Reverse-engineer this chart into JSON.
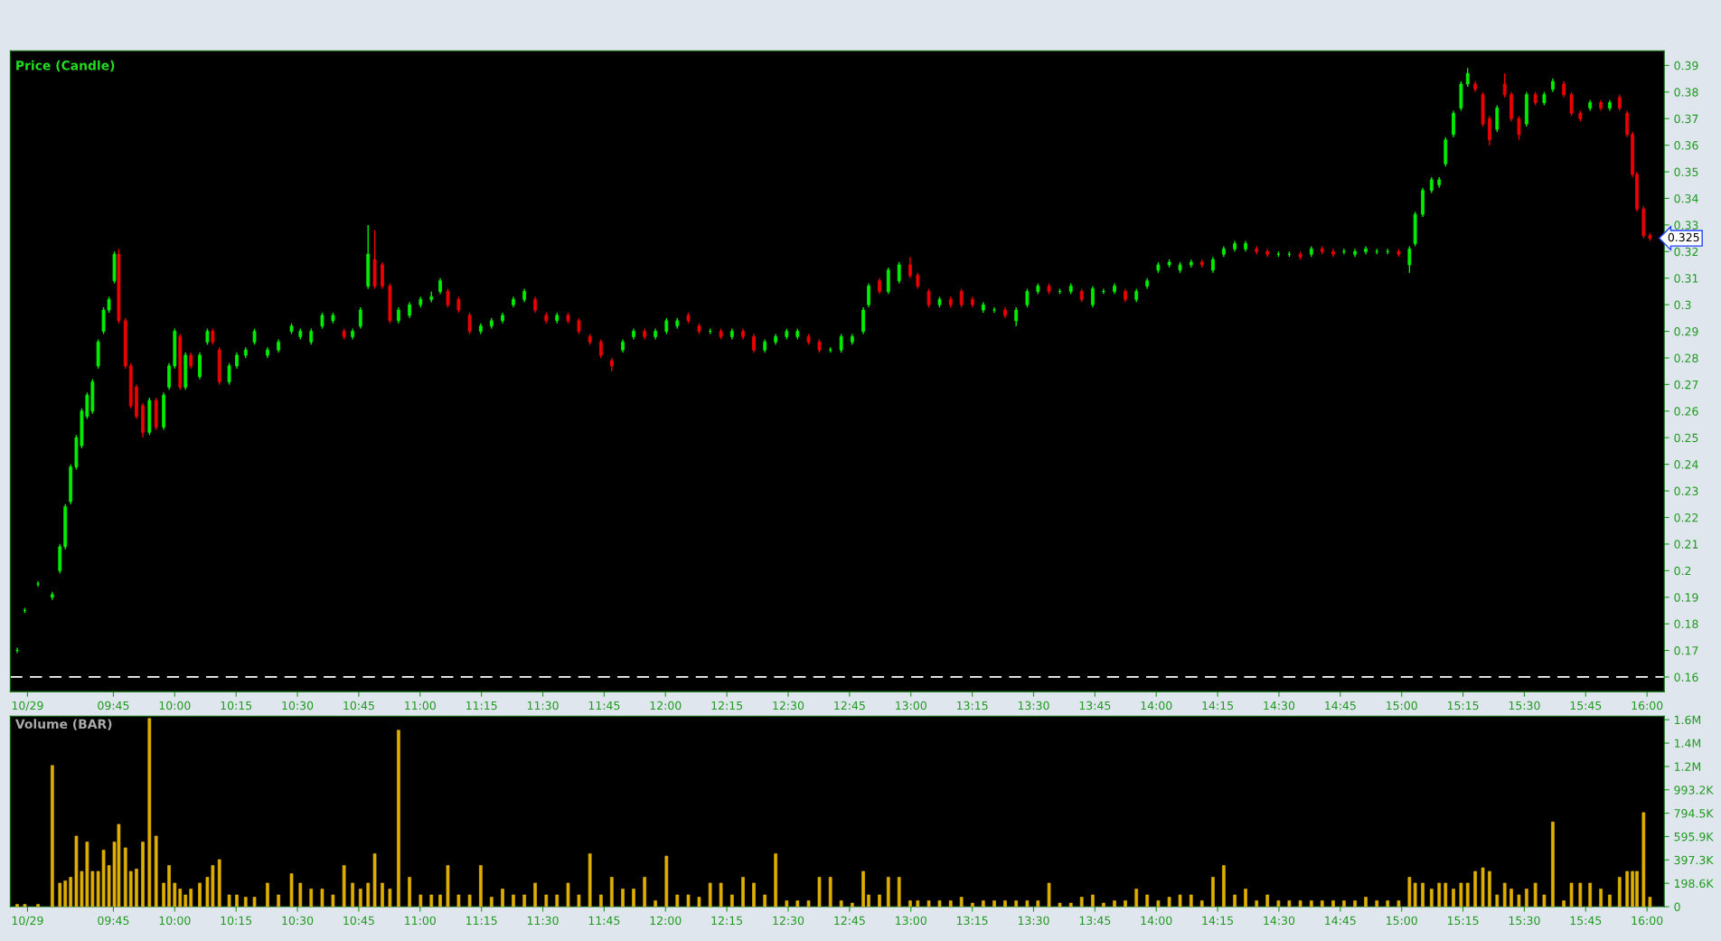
{
  "chart_data": [
    {
      "type": "candlestick",
      "title": "Price (Candle)",
      "colors": [
        "#00ee00",
        "#00ee00",
        "#00ee00",
        "#00ee00",
        "#00ee00",
        "#00ee00",
        "#00ee00",
        "#00ee00",
        "#00ee00",
        "#00ee00",
        "#00ee00",
        "#00ee00",
        "#00ee00",
        "#00ee00",
        "#00ee00",
        "#ee0000",
        "#ee0000",
        "#ee0000",
        "#ee0000",
        "#ee0000",
        "#00ee00",
        "#ee0000",
        "#00ee00",
        "#00ee00",
        "#00ee00",
        "#ee0000",
        "#00ee00",
        "#ee0000",
        "#00ee00",
        "#00ee00",
        "#ee0000",
        "#ee0000",
        "#00ee00",
        "#00ee00",
        "#00ee00",
        "#00ee00",
        "#00ee00",
        "#00ee00",
        "#00ee00",
        "#00ee00",
        "#00ee00",
        "#00ee00",
        "#00ee00",
        "#ee0000",
        "#00ee00",
        "#00ee00",
        "#00ee00",
        "#ee0000",
        "#ee0000",
        "#ee0000",
        "#00ee00",
        "#00ee00",
        "#00ee00",
        "#00ee00",
        "#00ee00",
        "#ee0000",
        "#ee0000",
        "#ee0000",
        "#00ee00",
        "#00ee00",
        "#00ee00",
        "#00ee00",
        "#00ee00",
        "#ee0000",
        "#ee0000",
        "#00ee00",
        "#ee0000",
        "#ee0000",
        "#ee0000",
        "#ee0000",
        "#ee0000",
        "#00ee00",
        "#00ee00",
        "#ee0000",
        "#00ee00",
        "#00ee00",
        "#00ee00",
        "#ee0000",
        "#ee0000",
        "#00ee00",
        "#ee0000",
        "#00ee00",
        "#ee0000",
        "#ee0000",
        "#00ee00",
        "#00ee00",
        "#00ee00",
        "#00ee00",
        "#ee0000",
        "#ee0000",
        "#00ee00",
        "#00ee00",
        "#00ee00",
        "#00ee00",
        "#00ee00",
        "#ee0000",
        "#00ee00",
        "#00ee00",
        "#ee0000",
        "#ee0000",
        "#ee0000",
        "#00ee00",
        "#ee0000",
        "#ee0000",
        "#ee0000",
        "#00ee00",
        "#00ee00",
        "#ee0000",
        "#00ee00",
        "#00ee00",
        "#00ee00",
        "#ee0000",
        "#00ee00",
        "#00ee00",
        "#ee0000",
        "#00ee00",
        "#00ee00",
        "#00ee00",
        "#ee0000",
        "#00ee00",
        "#00ee00",
        "#00ee00",
        "#00ee00",
        "#00ee00",
        "#00ee00",
        "#ee0000",
        "#00ee00",
        "#00ee00",
        "#00ee00",
        "#00ee00",
        "#ee0000",
        "#ee0000",
        "#00ee00",
        "#00ee00",
        "#ee0000",
        "#00ee00",
        "#ee0000",
        "#ee0000",
        "#00ee00",
        "#00ee00",
        "#00ee00",
        "#00ee00",
        "#00ee00",
        "#ee0000",
        "#00ee00",
        "#00ee00",
        "#00ee00",
        "#00ee00",
        "#00ee00",
        "#00ee00",
        "#00ee00",
        "#00ee00",
        "#00ee00",
        "#ee0000",
        "#ee0000",
        "#ee0000",
        "#00ee00",
        "#ee0000",
        "#ee0000",
        "#ee0000",
        "#00ee00",
        "#ee0000",
        "#00ee00",
        "#00ee00",
        "#ee0000",
        "#ee0000",
        "#ee0000",
        "#00ee00",
        "#ee0000",
        "#00ee00",
        "#ee0000",
        "#ee0000",
        "#ee0000",
        "#ee0000",
        "#ee0000",
        "#ee0000"
      ],
      "x": [
        9.358,
        9.389,
        9.443,
        9.501,
        9.532,
        9.554,
        9.576,
        9.599,
        9.621,
        9.643,
        9.665,
        9.688,
        9.71,
        9.732,
        9.754,
        9.772,
        9.799,
        9.821,
        9.844,
        9.87,
        9.897,
        9.924,
        9.955,
        9.977,
        10.0,
        10.022,
        10.044,
        10.066,
        10.102,
        10.133,
        10.155,
        10.182,
        10.222,
        10.253,
        10.289,
        10.325,
        10.378,
        10.423,
        10.476,
        10.512,
        10.556,
        10.601,
        10.645,
        10.69,
        10.725,
        10.757,
        10.788,
        10.815,
        10.846,
        10.877,
        10.912,
        10.957,
        11.002,
        11.046,
        11.082,
        11.113,
        11.157,
        11.202,
        11.247,
        11.291,
        11.336,
        11.38,
        11.425,
        11.469,
        11.514,
        11.558,
        11.603,
        11.647,
        11.692,
        11.737,
        11.781,
        11.826,
        11.87,
        11.915,
        11.959,
        12.004,
        12.048,
        12.093,
        12.137,
        12.182,
        12.226,
        12.271,
        12.316,
        12.36,
        12.405,
        12.449,
        12.494,
        12.538,
        12.583,
        12.627,
        12.672,
        12.716,
        12.761,
        12.806,
        12.828,
        12.872,
        12.908,
        12.952,
        12.997,
        13.028,
        13.073,
        13.117,
        13.162,
        13.206,
        13.251,
        13.295,
        13.34,
        13.384,
        13.429,
        13.474,
        13.518,
        13.563,
        13.607,
        13.652,
        13.696,
        13.741,
        13.785,
        13.83,
        13.874,
        13.919,
        13.963,
        14.008,
        14.053,
        14.097,
        14.142,
        14.186,
        14.231,
        14.275,
        14.32,
        14.364,
        14.409,
        14.453,
        14.498,
        14.542,
        14.587,
        14.632,
        14.676,
        14.721,
        14.765,
        14.81,
        14.854,
        14.899,
        14.943,
        14.988,
        15.032,
        15.055,
        15.086,
        15.122,
        15.153,
        15.179,
        15.211,
        15.242,
        15.269,
        15.3,
        15.331,
        15.358,
        15.389,
        15.42,
        15.447,
        15.478,
        15.509,
        15.545,
        15.581,
        15.616,
        15.661,
        15.692,
        15.728,
        15.768,
        15.812,
        15.848,
        15.888,
        15.919,
        15.941,
        15.959,
        15.986,
        16.012
      ],
      "ohlc": [
        [
          0.17,
          0.171,
          0.169,
          0.17
        ],
        [
          0.185,
          0.186,
          0.184,
          0.185
        ],
        [
          0.195,
          0.196,
          0.194,
          0.195
        ],
        [
          0.19,
          0.192,
          0.189,
          0.191
        ],
        [
          0.2,
          0.21,
          0.199,
          0.209
        ],
        [
          0.209,
          0.225,
          0.208,
          0.224
        ],
        [
          0.226,
          0.24,
          0.225,
          0.239
        ],
        [
          0.239,
          0.251,
          0.238,
          0.25
        ],
        [
          0.247,
          0.261,
          0.246,
          0.26
        ],
        [
          0.258,
          0.267,
          0.257,
          0.266
        ],
        [
          0.26,
          0.272,
          0.259,
          0.271
        ],
        [
          0.277,
          0.287,
          0.276,
          0.286
        ],
        [
          0.29,
          0.299,
          0.289,
          0.298
        ],
        [
          0.298,
          0.303,
          0.297,
          0.302
        ],
        [
          0.309,
          0.32,
          0.308,
          0.319
        ],
        [
          0.319,
          0.321,
          0.293,
          0.294
        ],
        [
          0.294,
          0.295,
          0.276,
          0.277
        ],
        [
          0.277,
          0.278,
          0.261,
          0.262
        ],
        [
          0.269,
          0.27,
          0.257,
          0.258
        ],
        [
          0.262,
          0.263,
          0.25,
          0.252
        ],
        [
          0.252,
          0.265,
          0.251,
          0.264
        ],
        [
          0.264,
          0.265,
          0.253,
          0.254
        ],
        [
          0.254,
          0.267,
          0.253,
          0.266
        ],
        [
          0.269,
          0.278,
          0.268,
          0.277
        ],
        [
          0.277,
          0.291,
          0.276,
          0.29
        ],
        [
          0.288,
          0.289,
          0.268,
          0.269
        ],
        [
          0.269,
          0.282,
          0.268,
          0.281
        ],
        [
          0.281,
          0.282,
          0.276,
          0.277
        ],
        [
          0.273,
          0.282,
          0.272,
          0.281
        ],
        [
          0.286,
          0.291,
          0.285,
          0.29
        ],
        [
          0.29,
          0.291,
          0.285,
          0.286
        ],
        [
          0.283,
          0.284,
          0.27,
          0.271
        ],
        [
          0.271,
          0.278,
          0.27,
          0.277
        ],
        [
          0.277,
          0.282,
          0.276,
          0.281
        ],
        [
          0.281,
          0.284,
          0.28,
          0.283
        ],
        [
          0.286,
          0.291,
          0.285,
          0.29
        ],
        [
          0.281,
          0.284,
          0.28,
          0.283
        ],
        [
          0.283,
          0.287,
          0.282,
          0.286
        ],
        [
          0.29,
          0.293,
          0.289,
          0.292
        ],
        [
          0.288,
          0.291,
          0.287,
          0.29
        ],
        [
          0.286,
          0.291,
          0.285,
          0.29
        ],
        [
          0.292,
          0.297,
          0.291,
          0.296
        ],
        [
          0.294,
          0.297,
          0.293,
          0.296
        ],
        [
          0.29,
          0.291,
          0.287,
          0.288
        ],
        [
          0.288,
          0.291,
          0.287,
          0.29
        ],
        [
          0.292,
          0.299,
          0.291,
          0.298
        ],
        [
          0.307,
          0.33,
          0.306,
          0.319
        ],
        [
          0.317,
          0.328,
          0.306,
          0.307
        ],
        [
          0.315,
          0.316,
          0.306,
          0.307
        ],
        [
          0.307,
          0.308,
          0.293,
          0.294
        ],
        [
          0.294,
          0.299,
          0.293,
          0.298
        ],
        [
          0.296,
          0.301,
          0.295,
          0.3
        ],
        [
          0.3,
          0.303,
          0.299,
          0.302
        ],
        [
          0.302,
          0.305,
          0.301,
          0.303
        ],
        [
          0.305,
          0.31,
          0.304,
          0.309
        ],
        [
          0.305,
          0.306,
          0.299,
          0.3
        ],
        [
          0.302,
          0.303,
          0.297,
          0.298
        ],
        [
          0.296,
          0.297,
          0.289,
          0.29
        ],
        [
          0.29,
          0.293,
          0.289,
          0.292
        ],
        [
          0.292,
          0.295,
          0.291,
          0.294
        ],
        [
          0.294,
          0.297,
          0.293,
          0.296
        ],
        [
          0.3,
          0.303,
          0.299,
          0.302
        ],
        [
          0.302,
          0.306,
          0.301,
          0.305
        ],
        [
          0.302,
          0.303,
          0.297,
          0.298
        ],
        [
          0.296,
          0.297,
          0.293,
          0.294
        ],
        [
          0.294,
          0.297,
          0.293,
          0.296
        ],
        [
          0.296,
          0.297,
          0.293,
          0.294
        ],
        [
          0.294,
          0.295,
          0.289,
          0.29
        ],
        [
          0.288,
          0.289,
          0.285,
          0.286
        ],
        [
          0.286,
          0.287,
          0.28,
          0.281
        ],
        [
          0.279,
          0.28,
          0.275,
          0.277
        ],
        [
          0.283,
          0.287,
          0.282,
          0.286
        ],
        [
          0.288,
          0.291,
          0.287,
          0.29
        ],
        [
          0.29,
          0.291,
          0.287,
          0.288
        ],
        [
          0.288,
          0.291,
          0.287,
          0.29
        ],
        [
          0.29,
          0.295,
          0.289,
          0.294
        ],
        [
          0.292,
          0.295,
          0.291,
          0.294
        ],
        [
          0.296,
          0.297,
          0.293,
          0.294
        ],
        [
          0.292,
          0.293,
          0.289,
          0.29
        ],
        [
          0.29,
          0.291,
          0.289,
          0.29
        ],
        [
          0.29,
          0.291,
          0.287,
          0.288
        ],
        [
          0.288,
          0.291,
          0.287,
          0.29
        ],
        [
          0.29,
          0.291,
          0.287,
          0.288
        ],
        [
          0.288,
          0.289,
          0.282,
          0.283
        ],
        [
          0.283,
          0.287,
          0.282,
          0.286
        ],
        [
          0.286,
          0.289,
          0.285,
          0.288
        ],
        [
          0.288,
          0.291,
          0.287,
          0.29
        ],
        [
          0.288,
          0.291,
          0.287,
          0.29
        ],
        [
          0.288,
          0.289,
          0.285,
          0.286
        ],
        [
          0.286,
          0.287,
          0.282,
          0.283
        ],
        [
          0.283,
          0.284,
          0.282,
          0.283
        ],
        [
          0.283,
          0.289,
          0.282,
          0.288
        ],
        [
          0.286,
          0.289,
          0.285,
          0.288
        ],
        [
          0.29,
          0.299,
          0.289,
          0.298
        ],
        [
          0.3,
          0.308,
          0.299,
          0.307
        ],
        [
          0.309,
          0.31,
          0.304,
          0.305
        ],
        [
          0.305,
          0.314,
          0.304,
          0.313
        ],
        [
          0.309,
          0.316,
          0.308,
          0.315
        ],
        [
          0.315,
          0.318,
          0.31,
          0.311
        ],
        [
          0.311,
          0.312,
          0.306,
          0.307
        ],
        [
          0.305,
          0.306,
          0.299,
          0.3
        ],
        [
          0.3,
          0.303,
          0.299,
          0.302
        ],
        [
          0.302,
          0.303,
          0.299,
          0.3
        ],
        [
          0.305,
          0.306,
          0.299,
          0.3
        ],
        [
          0.302,
          0.303,
          0.299,
          0.3
        ],
        [
          0.298,
          0.301,
          0.297,
          0.3
        ],
        [
          0.298,
          0.299,
          0.297,
          0.298
        ],
        [
          0.298,
          0.299,
          0.295,
          0.296
        ],
        [
          0.294,
          0.299,
          0.292,
          0.298
        ],
        [
          0.3,
          0.306,
          0.299,
          0.305
        ],
        [
          0.305,
          0.308,
          0.304,
          0.307
        ],
        [
          0.307,
          0.308,
          0.304,
          0.305
        ],
        [
          0.305,
          0.306,
          0.304,
          0.305
        ],
        [
          0.305,
          0.308,
          0.304,
          0.307
        ],
        [
          0.305,
          0.306,
          0.301,
          0.302
        ],
        [
          0.3,
          0.307,
          0.299,
          0.306
        ],
        [
          0.305,
          0.306,
          0.304,
          0.305
        ],
        [
          0.305,
          0.308,
          0.304,
          0.307
        ],
        [
          0.305,
          0.306,
          0.301,
          0.302
        ],
        [
          0.302,
          0.306,
          0.301,
          0.305
        ],
        [
          0.307,
          0.31,
          0.306,
          0.309
        ],
        [
          0.313,
          0.316,
          0.312,
          0.315
        ],
        [
          0.315,
          0.317,
          0.314,
          0.316
        ],
        [
          0.313,
          0.316,
          0.312,
          0.315
        ],
        [
          0.315,
          0.317,
          0.314,
          0.316
        ],
        [
          0.316,
          0.317,
          0.314,
          0.315
        ],
        [
          0.313,
          0.318,
          0.312,
          0.317
        ],
        [
          0.319,
          0.322,
          0.318,
          0.321
        ],
        [
          0.321,
          0.324,
          0.32,
          0.323
        ],
        [
          0.321,
          0.324,
          0.32,
          0.323
        ],
        [
          0.321,
          0.322,
          0.319,
          0.32
        ],
        [
          0.32,
          0.321,
          0.318,
          0.319
        ],
        [
          0.319,
          0.32,
          0.318,
          0.319
        ],
        [
          0.319,
          0.32,
          0.318,
          0.319
        ],
        [
          0.319,
          0.32,
          0.317,
          0.318
        ],
        [
          0.319,
          0.322,
          0.318,
          0.321
        ],
        [
          0.321,
          0.322,
          0.319,
          0.32
        ],
        [
          0.32,
          0.321,
          0.318,
          0.319
        ],
        [
          0.32,
          0.321,
          0.319,
          0.32
        ],
        [
          0.319,
          0.321,
          0.318,
          0.32
        ],
        [
          0.32,
          0.322,
          0.319,
          0.321
        ],
        [
          0.32,
          0.321,
          0.319,
          0.32
        ],
        [
          0.32,
          0.321,
          0.319,
          0.32
        ],
        [
          0.32,
          0.321,
          0.318,
          0.319
        ],
        [
          0.315,
          0.322,
          0.312,
          0.321
        ],
        [
          0.323,
          0.335,
          0.322,
          0.334
        ],
        [
          0.334,
          0.344,
          0.333,
          0.343
        ],
        [
          0.343,
          0.348,
          0.342,
          0.347
        ],
        [
          0.345,
          0.348,
          0.344,
          0.347
        ],
        [
          0.353,
          0.363,
          0.352,
          0.362
        ],
        [
          0.364,
          0.373,
          0.363,
          0.372
        ],
        [
          0.374,
          0.384,
          0.373,
          0.383
        ],
        [
          0.383,
          0.389,
          0.382,
          0.387
        ],
        [
          0.383,
          0.384,
          0.38,
          0.381
        ],
        [
          0.379,
          0.38,
          0.367,
          0.368
        ],
        [
          0.37,
          0.371,
          0.36,
          0.362
        ],
        [
          0.366,
          0.375,
          0.365,
          0.374
        ],
        [
          0.383,
          0.387,
          0.378,
          0.379
        ],
        [
          0.379,
          0.38,
          0.369,
          0.37
        ],
        [
          0.37,
          0.371,
          0.362,
          0.364
        ],
        [
          0.368,
          0.38,
          0.367,
          0.379
        ],
        [
          0.379,
          0.38,
          0.375,
          0.376
        ],
        [
          0.376,
          0.38,
          0.375,
          0.379
        ],
        [
          0.381,
          0.385,
          0.38,
          0.384
        ],
        [
          0.383,
          0.384,
          0.378,
          0.379
        ],
        [
          0.379,
          0.38,
          0.371,
          0.372
        ],
        [
          0.372,
          0.373,
          0.369,
          0.37
        ],
        [
          0.374,
          0.377,
          0.373,
          0.376
        ],
        [
          0.376,
          0.377,
          0.373,
          0.374
        ],
        [
          0.374,
          0.377,
          0.373,
          0.376
        ],
        [
          0.378,
          0.379,
          0.373,
          0.374
        ],
        [
          0.372,
          0.373,
          0.363,
          0.364
        ],
        [
          0.364,
          0.365,
          0.348,
          0.349
        ],
        [
          0.349,
          0.35,
          0.335,
          0.336
        ],
        [
          0.336,
          0.337,
          0.325,
          0.326
        ],
        [
          0.326,
          0.327,
          0.324,
          0.325
        ]
      ],
      "xlim": [
        9.33,
        16.07
      ],
      "ylim": [
        0.1545,
        0.3955
      ],
      "xticks": [
        {
          "value": 9.4,
          "label": "10/29"
        },
        {
          "value": 9.75,
          "label": "09:45"
        },
        {
          "value": 10.0,
          "label": "10:00"
        },
        {
          "value": 10.25,
          "label": "10:15"
        },
        {
          "value": 10.5,
          "label": "10:30"
        },
        {
          "value": 10.75,
          "label": "10:45"
        },
        {
          "value": 11.0,
          "label": "11:00"
        },
        {
          "value": 11.25,
          "label": "11:15"
        },
        {
          "value": 11.5,
          "label": "11:30"
        },
        {
          "value": 11.75,
          "label": "11:45"
        },
        {
          "value": 12.0,
          "label": "12:00"
        },
        {
          "value": 12.25,
          "label": "12:15"
        },
        {
          "value": 12.5,
          "label": "12:30"
        },
        {
          "value": 12.75,
          "label": "12:45"
        },
        {
          "value": 13.0,
          "label": "13:00"
        },
        {
          "value": 13.25,
          "label": "13:15"
        },
        {
          "value": 13.5,
          "label": "13:30"
        },
        {
          "value": 13.75,
          "label": "13:45"
        },
        {
          "value": 14.0,
          "label": "14:00"
        },
        {
          "value": 14.25,
          "label": "14:15"
        },
        {
          "value": 14.5,
          "label": "14:30"
        },
        {
          "value": 14.75,
          "label": "14:45"
        },
        {
          "value": 15.0,
          "label": "15:00"
        },
        {
          "value": 15.25,
          "label": "15:15"
        },
        {
          "value": 15.5,
          "label": "15:30"
        },
        {
          "value": 15.75,
          "label": "15:45"
        },
        {
          "value": 16.0,
          "label": "16:00"
        }
      ],
      "yticks": [
        0.16,
        0.17,
        0.18,
        0.19,
        0.2,
        0.21,
        0.22,
        0.23,
        0.24,
        0.25,
        0.26,
        0.27,
        0.28,
        0.29,
        0.3,
        0.31,
        0.32,
        0.33,
        0.34,
        0.35,
        0.36,
        0.37,
        0.38,
        0.39
      ],
      "ref_lines": [
        {
          "axis": "y",
          "value": 0.16,
          "color": "#ffffff",
          "line_style": "dashed"
        }
      ],
      "annotations": [
        {
          "text": "0.325",
          "x": 16.012,
          "y": 0.325
        }
      ],
      "grid": false,
      "legend": false
    },
    {
      "type": "bar",
      "title": "Volume (BAR)",
      "color": "#e0b000",
      "x": [
        9.358,
        9.389,
        9.443,
        9.501,
        9.532,
        9.554,
        9.576,
        9.599,
        9.621,
        9.643,
        9.665,
        9.688,
        9.71,
        9.732,
        9.754,
        9.772,
        9.799,
        9.821,
        9.844,
        9.87,
        9.897,
        9.924,
        9.955,
        9.977,
        10.0,
        10.022,
        10.044,
        10.066,
        10.102,
        10.133,
        10.155,
        10.182,
        10.222,
        10.253,
        10.289,
        10.325,
        10.378,
        10.423,
        10.476,
        10.512,
        10.556,
        10.601,
        10.645,
        10.69,
        10.725,
        10.757,
        10.788,
        10.815,
        10.846,
        10.877,
        10.912,
        10.957,
        11.002,
        11.046,
        11.082,
        11.113,
        11.157,
        11.202,
        11.247,
        11.291,
        11.336,
        11.38,
        11.425,
        11.469,
        11.514,
        11.558,
        11.603,
        11.647,
        11.692,
        11.737,
        11.781,
        11.826,
        11.87,
        11.915,
        11.959,
        12.004,
        12.048,
        12.093,
        12.137,
        12.182,
        12.226,
        12.271,
        12.316,
        12.36,
        12.405,
        12.449,
        12.494,
        12.538,
        12.583,
        12.627,
        12.672,
        12.716,
        12.761,
        12.806,
        12.828,
        12.872,
        12.908,
        12.952,
        12.997,
        13.028,
        13.073,
        13.117,
        13.162,
        13.206,
        13.251,
        13.295,
        13.34,
        13.384,
        13.429,
        13.474,
        13.518,
        13.563,
        13.607,
        13.652,
        13.696,
        13.741,
        13.785,
        13.83,
        13.874,
        13.919,
        13.963,
        14.008,
        14.053,
        14.097,
        14.142,
        14.186,
        14.231,
        14.275,
        14.32,
        14.364,
        14.409,
        14.453,
        14.498,
        14.542,
        14.587,
        14.632,
        14.676,
        14.721,
        14.765,
        14.81,
        14.854,
        14.899,
        14.943,
        14.988,
        15.032,
        15.055,
        15.086,
        15.122,
        15.153,
        15.179,
        15.211,
        15.242,
        15.269,
        15.3,
        15.331,
        15.358,
        15.389,
        15.42,
        15.447,
        15.478,
        15.509,
        15.545,
        15.581,
        15.616,
        15.661,
        15.692,
        15.728,
        15.768,
        15.812,
        15.848,
        15.888,
        15.919,
        15.941,
        15.959,
        15.986,
        16.012
      ],
      "values": [
        20000,
        20000,
        20000,
        1200000,
        200000,
        220000,
        250000,
        600000,
        300000,
        550000,
        300000,
        300000,
        480000,
        350000,
        550000,
        700000,
        500000,
        300000,
        320000,
        550000,
        1600000,
        600000,
        200000,
        350000,
        200000,
        150000,
        100000,
        150000,
        200000,
        250000,
        350000,
        400000,
        100000,
        100000,
        80000,
        80000,
        200000,
        100000,
        280000,
        200000,
        150000,
        150000,
        100000,
        350000,
        200000,
        150000,
        200000,
        450000,
        200000,
        150000,
        1500000,
        250000,
        100000,
        100000,
        100000,
        350000,
        100000,
        100000,
        350000,
        80000,
        150000,
        100000,
        100000,
        200000,
        100000,
        100000,
        200000,
        100000,
        450000,
        100000,
        250000,
        150000,
        150000,
        250000,
        50000,
        430000,
        100000,
        100000,
        80000,
        200000,
        200000,
        100000,
        250000,
        200000,
        100000,
        450000,
        50000,
        50000,
        50000,
        250000,
        250000,
        50000,
        30000,
        300000,
        100000,
        100000,
        250000,
        250000,
        50000,
        50000,
        50000,
        50000,
        50000,
        80000,
        30000,
        50000,
        50000,
        50000,
        50000,
        50000,
        50000,
        200000,
        30000,
        30000,
        80000,
        100000,
        30000,
        50000,
        50000,
        150000,
        100000,
        50000,
        80000,
        100000,
        100000,
        50000,
        250000,
        350000,
        100000,
        150000,
        50000,
        100000,
        50000,
        50000,
        50000,
        50000,
        50000,
        50000,
        50000,
        50000,
        80000,
        50000,
        50000,
        50000,
        250000,
        200000,
        200000,
        150000,
        200000,
        200000,
        150000,
        200000,
        200000,
        300000,
        330000,
        300000,
        100000,
        200000,
        150000,
        100000,
        150000,
        200000,
        100000,
        720000,
        50000,
        200000,
        200000,
        200000,
        150000,
        100000,
        250000,
        300000,
        300000,
        300000,
        800000,
        80000
      ],
      "xlim": [
        9.33,
        16.07
      ],
      "ylim": [
        0,
        1620000
      ],
      "xticks": [
        {
          "value": 9.4,
          "label": "10/29"
        },
        {
          "value": 9.75,
          "label": "09:45"
        },
        {
          "value": 10.0,
          "label": "10:00"
        },
        {
          "value": 10.25,
          "label": "10:15"
        },
        {
          "value": 10.5,
          "label": "10:30"
        },
        {
          "value": 10.75,
          "label": "10:45"
        },
        {
          "value": 11.0,
          "label": "11:00"
        },
        {
          "value": 11.25,
          "label": "11:15"
        },
        {
          "value": 11.5,
          "label": "11:30"
        },
        {
          "value": 11.75,
          "label": "11:45"
        },
        {
          "value": 12.0,
          "label": "12:00"
        },
        {
          "value": 12.25,
          "label": "12:15"
        },
        {
          "value": 12.5,
          "label": "12:30"
        },
        {
          "value": 12.75,
          "label": "12:45"
        },
        {
          "value": 13.0,
          "label": "13:00"
        },
        {
          "value": 13.25,
          "label": "13:15"
        },
        {
          "value": 13.5,
          "label": "13:30"
        },
        {
          "value": 13.75,
          "label": "13:45"
        },
        {
          "value": 14.0,
          "label": "14:00"
        },
        {
          "value": 14.25,
          "label": "14:15"
        },
        {
          "value": 14.5,
          "label": "14:30"
        },
        {
          "value": 14.75,
          "label": "14:45"
        },
        {
          "value": 15.0,
          "label": "15:00"
        },
        {
          "value": 15.25,
          "label": "15:15"
        },
        {
          "value": 15.5,
          "label": "15:30"
        },
        {
          "value": 15.75,
          "label": "15:45"
        },
        {
          "value": 16.0,
          "label": "16:00"
        }
      ],
      "yticks": [
        0,
        {
          "value": 198600,
          "label": "198.6K"
        },
        {
          "value": 397300,
          "label": "397.3K"
        },
        {
          "value": 595900,
          "label": "595.9K"
        },
        {
          "value": 794500,
          "label": "794.5K"
        },
        {
          "value": 993200,
          "label": "993.2K"
        },
        {
          "value": 1191800,
          "label": "1.2M"
        },
        {
          "value": 1390400,
          "label": "1.4M"
        },
        {
          "value": 1589000,
          "label": "1.6M"
        }
      ],
      "grid": false,
      "legend": false
    }
  ]
}
